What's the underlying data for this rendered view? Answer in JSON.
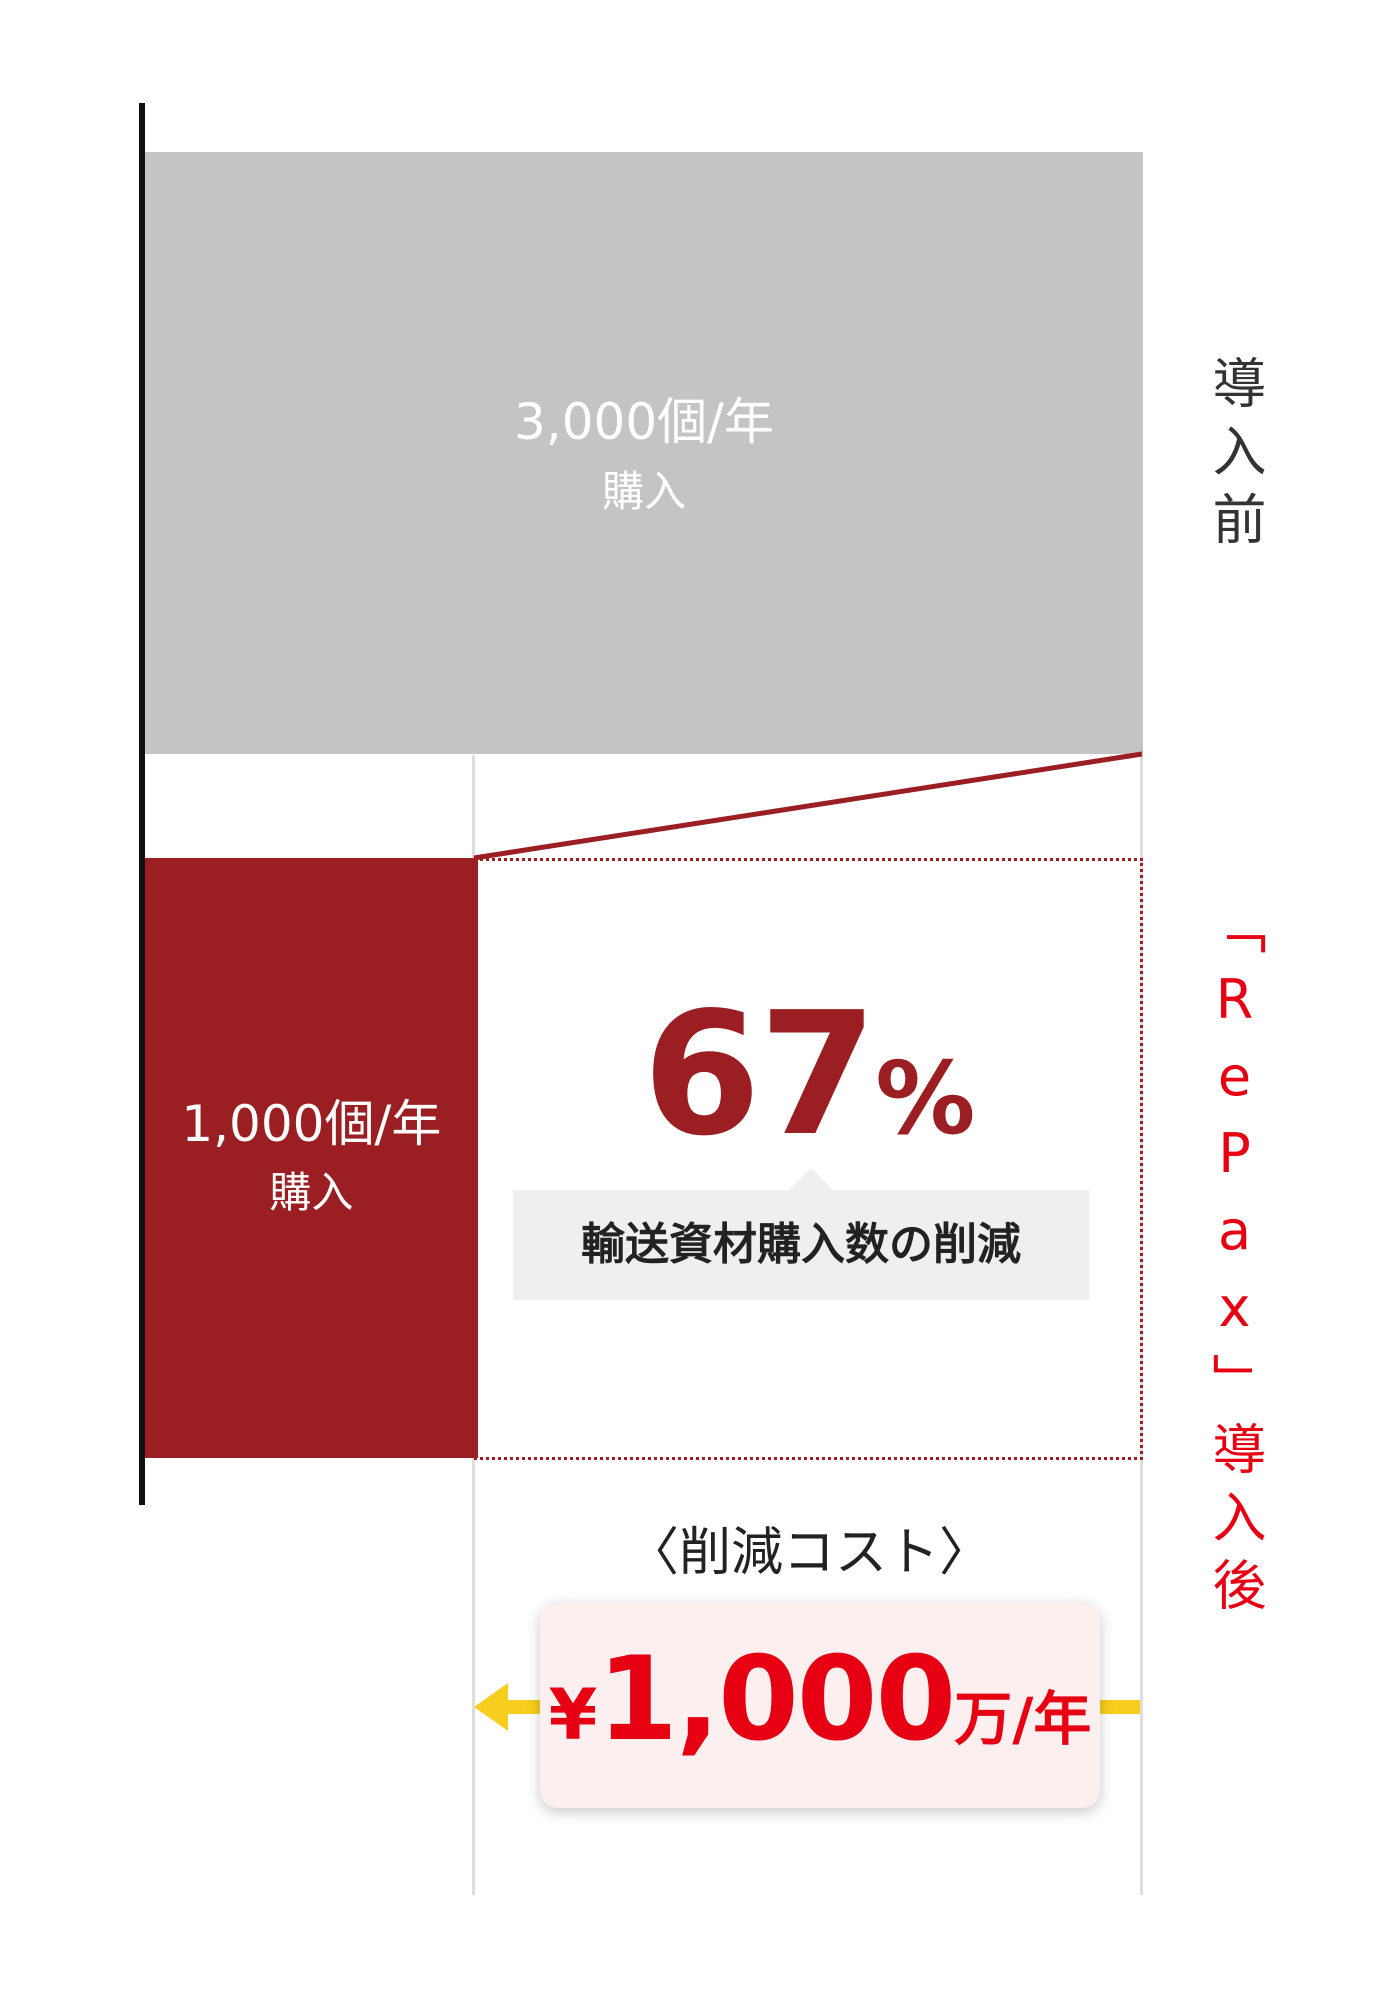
{
  "chart_data": {
    "type": "bar",
    "orientation": "horizontal",
    "categories": [
      "導入前",
      "「RePax」導入後"
    ],
    "values": [
      3000,
      1000
    ],
    "bar_labels": [
      {
        "value_text": "3,000個/年",
        "sub_text": "購入"
      },
      {
        "value_text": "1,000個/年",
        "sub_text": "購入"
      }
    ],
    "colors": {
      "before": "#c4c4c4",
      "after": "#9b1f22",
      "accent": "#e60012",
      "arrow": "#f7ce1d"
    },
    "xlim": [
      0,
      3000
    ],
    "grid": false,
    "annotations": {
      "reduction_percent": "67",
      "percent_sign": "%",
      "reduction_caption": "輸送資材購入数の削減",
      "cost_heading": "〈削減コスト〉",
      "cost_prefix": "¥",
      "cost_value": "1,000",
      "cost_unit": "万/年"
    }
  }
}
